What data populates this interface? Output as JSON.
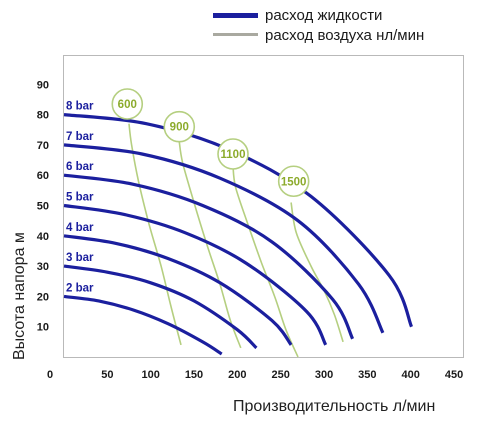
{
  "chart_data": {
    "type": "line",
    "xlabel": "Производительность  л/мин",
    "ylabel": "Высота напора  м",
    "xlim": [
      0,
      450
    ],
    "ylim": [
      0,
      100
    ],
    "x_ticks": [
      0,
      50,
      100,
      150,
      200,
      250,
      300,
      350,
      400,
      450
    ],
    "y_ticks": [
      10,
      20,
      30,
      40,
      50,
      60,
      70,
      80,
      90
    ],
    "grid": false,
    "legend": {
      "placement": "top",
      "entries": [
        {
          "label": "расход жидкости",
          "color": "#1b1f9e"
        },
        {
          "label": "расход воздуха нл/мин",
          "color": "#a9a9a0"
        }
      ]
    },
    "colors": {
      "liquid": "#1b1f9e",
      "air": "#b5cf80",
      "air_label": "#8cab2c",
      "axis_frame": "#9a9a9a",
      "plot_border": "#b9b9b9"
    },
    "pressure_series": [
      {
        "label": "2 bar",
        "x": [
          0,
          40,
          80,
          120,
          160,
          182
        ],
        "y": [
          20,
          18.5,
          15.5,
          11,
          5,
          1
        ]
      },
      {
        "label": "3 bar",
        "x": [
          0,
          50,
          100,
          150,
          200,
          222
        ],
        "y": [
          30,
          28,
          24.5,
          18.5,
          9,
          3
        ]
      },
      {
        "label": "4 bar",
        "x": [
          0,
          60,
          120,
          180,
          240,
          262
        ],
        "y": [
          40,
          37.5,
          32.5,
          24.5,
          12,
          4
        ]
      },
      {
        "label": "5 bar",
        "x": [
          0,
          70,
          140,
          210,
          280,
          302
        ],
        "y": [
          50,
          47,
          41,
          31,
          15,
          4
        ]
      },
      {
        "label": "6 bar",
        "x": [
          0,
          80,
          160,
          240,
          310,
          333
        ],
        "y": [
          60,
          57,
          50,
          38,
          19,
          6
        ]
      },
      {
        "label": "7 bar",
        "x": [
          0,
          90,
          180,
          270,
          340,
          368
        ],
        "y": [
          70,
          67,
          59,
          45,
          24,
          8
        ]
      },
      {
        "label": "8 bar",
        "x": [
          0,
          95,
          190,
          285,
          375,
          401
        ],
        "y": [
          80,
          77,
          68.5,
          53,
          27,
          10
        ]
      }
    ],
    "air_series": [
      {
        "label": "600",
        "x": [
          75,
          78,
          86,
          98,
          112,
          124,
          135
        ],
        "y": [
          77,
          70,
          58,
          44,
          30,
          16,
          4
        ]
      },
      {
        "label": "900",
        "x": [
          133,
          137,
          150,
          165,
          180,
          192,
          204
        ],
        "y": [
          71,
          64,
          51,
          37,
          24,
          12,
          3
        ]
      },
      {
        "label": "1100",
        "x": [
          195,
          198,
          212,
          228,
          243,
          256,
          270
        ],
        "y": [
          63,
          56,
          44,
          31,
          20,
          9,
          0
        ]
      },
      {
        "label": "1500",
        "x": [
          262,
          268,
          285,
          300,
          312,
          322
        ],
        "y": [
          51,
          41,
          30,
          22,
          14,
          5
        ]
      }
    ],
    "air_bubbles": [
      {
        "label": "600",
        "x": 73,
        "y": 83.5
      },
      {
        "label": "900",
        "x": 133,
        "y": 76
      },
      {
        "label": "1100",
        "x": 195,
        "y": 67
      },
      {
        "label": "1500",
        "x": 265,
        "y": 58
      }
    ]
  }
}
